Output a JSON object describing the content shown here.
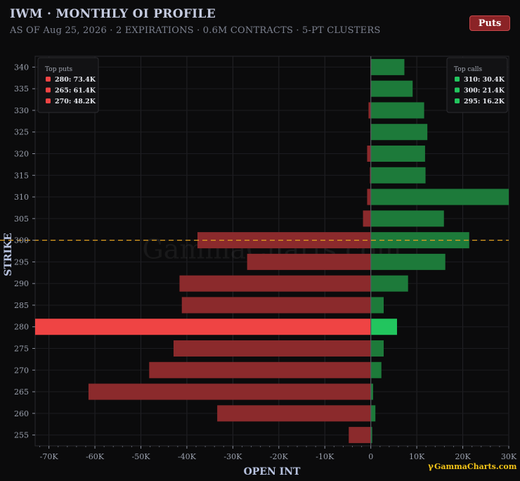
{
  "header": {
    "title": "IWM · MONTHLY OI PROFILE",
    "subtitle": "AS OF Aug 25, 2026 · 2 EXPIRATIONS · 0.6M CONTRACTS · 5-PT CLUSTERS",
    "toggle_label": "Puts"
  },
  "watermark": "GammaCharts.com",
  "branding": "GammaCharts.com",
  "colors": {
    "call_bar": "#1d7a3a",
    "call_highlight": "#22c55e",
    "put_bar": "#8b2a2c",
    "put_highlight": "#ef4444",
    "spot_line": "#e0a020"
  },
  "chart_data": {
    "type": "bar",
    "orientation": "horizontal",
    "xlabel": "OPEN INT",
    "ylabel": "STRIKE",
    "xlim": [
      -73000,
      30000
    ],
    "x_ticks": [
      -70000,
      -60000,
      -50000,
      -40000,
      -30000,
      -20000,
      -10000,
      0,
      10000,
      20000,
      30000
    ],
    "x_tick_labels": [
      "-70K",
      "-60K",
      "-50K",
      "-40K",
      "-30K",
      "-20K",
      "-10K",
      "0",
      "10K",
      "20K",
      "30K"
    ],
    "categories": [
      340,
      335,
      330,
      325,
      320,
      315,
      310,
      305,
      300,
      295,
      290,
      285,
      280,
      275,
      270,
      265,
      260,
      255
    ],
    "series": [
      {
        "name": "Calls",
        "values": [
          7300,
          9100,
          11600,
          12300,
          11800,
          11900,
          30400,
          15900,
          21400,
          16200,
          8100,
          2800,
          5700,
          2800,
          2300,
          500,
          1000,
          300
        ]
      },
      {
        "name": "Puts",
        "values": [
          -100,
          -100,
          -500,
          -100,
          -800,
          -200,
          -800,
          -1700,
          -37700,
          -26900,
          -41600,
          -41100,
          -73400,
          -42900,
          -48200,
          -61400,
          -33400,
          -4800
        ]
      }
    ],
    "spot_strike": 300,
    "highlight_strike": 280,
    "grid": true,
    "legends": [
      {
        "title": "Top puts",
        "position": "top-left",
        "color": "#ef4444",
        "entries": [
          "280: 73.4K",
          "265: 61.4K",
          "270: 48.2K"
        ]
      },
      {
        "title": "Top calls",
        "position": "top-right",
        "color": "#22c55e",
        "entries": [
          "310: 30.4K",
          "300: 21.4K",
          "295: 16.2K"
        ]
      }
    ]
  }
}
